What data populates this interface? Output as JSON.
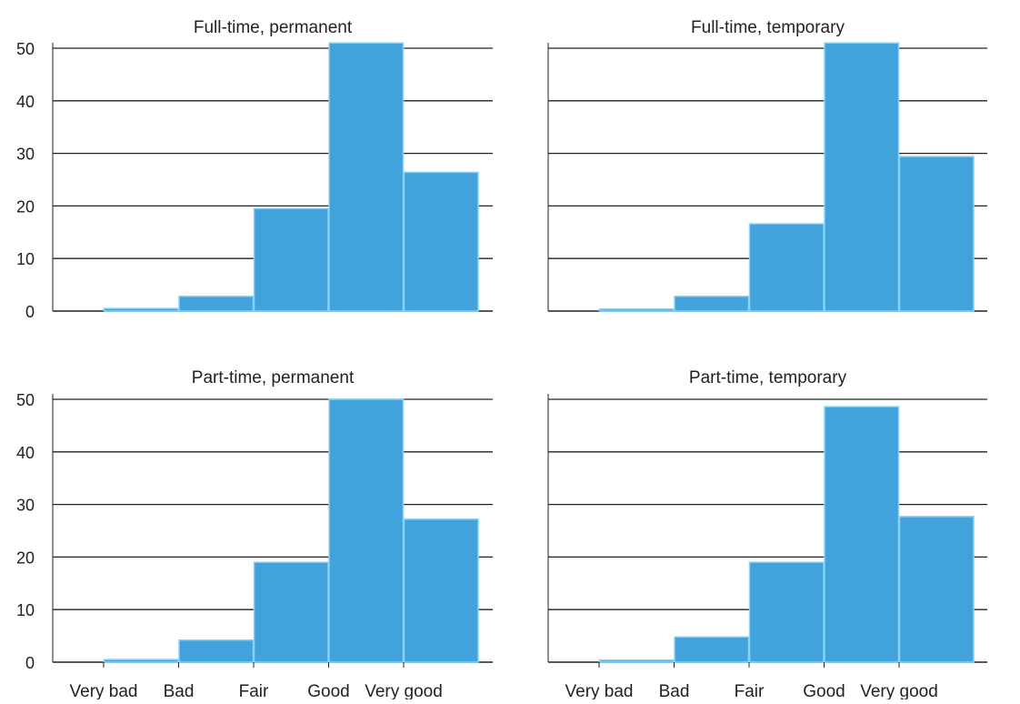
{
  "chart_data": [
    {
      "type": "bar",
      "title": "Full-time, permanent",
      "categories": [
        "Very bad",
        "Bad",
        "Fair",
        "Good",
        "Very good"
      ],
      "values": [
        0.5,
        2.8,
        19.5,
        51,
        26.4
      ],
      "ylim": [
        0,
        50
      ],
      "yticks": [
        0,
        10,
        20,
        30,
        40,
        50
      ],
      "xtick_labels_shown": false,
      "grid": "horizontal"
    },
    {
      "type": "bar",
      "title": "Full-time, temporary",
      "categories": [
        "Very bad",
        "Bad",
        "Fair",
        "Good",
        "Very good"
      ],
      "values": [
        0.4,
        2.8,
        16.6,
        51,
        29.4
      ],
      "ylim": [
        0,
        50
      ],
      "yticks": [
        0,
        10,
        20,
        30,
        40,
        50
      ],
      "xtick_labels_shown": false,
      "grid": "horizontal"
    },
    {
      "type": "bar",
      "title": "Part-time, permanent",
      "categories": [
        "Very bad",
        "Bad",
        "Fair",
        "Good",
        "Very good"
      ],
      "values": [
        0.5,
        4.2,
        19,
        50,
        27.2
      ],
      "ylim": [
        0,
        50
      ],
      "yticks": [
        0,
        10,
        20,
        30,
        40,
        50
      ],
      "xtick_labels_shown": true,
      "grid": "horizontal"
    },
    {
      "type": "bar",
      "title": "Part-time, temporary",
      "categories": [
        "Very bad",
        "Bad",
        "Fair",
        "Good",
        "Very good"
      ],
      "values": [
        0.4,
        4.8,
        19,
        48.6,
        27.7
      ],
      "ylim": [
        0,
        50
      ],
      "yticks": [
        0,
        10,
        20,
        30,
        40,
        50
      ],
      "xtick_labels_shown": true,
      "grid": "horizontal"
    }
  ],
  "colors": {
    "bar_fill": "#42a2dc",
    "bar_edge": "#86d4f7",
    "gridline": "#222222",
    "text": "#222222"
  }
}
